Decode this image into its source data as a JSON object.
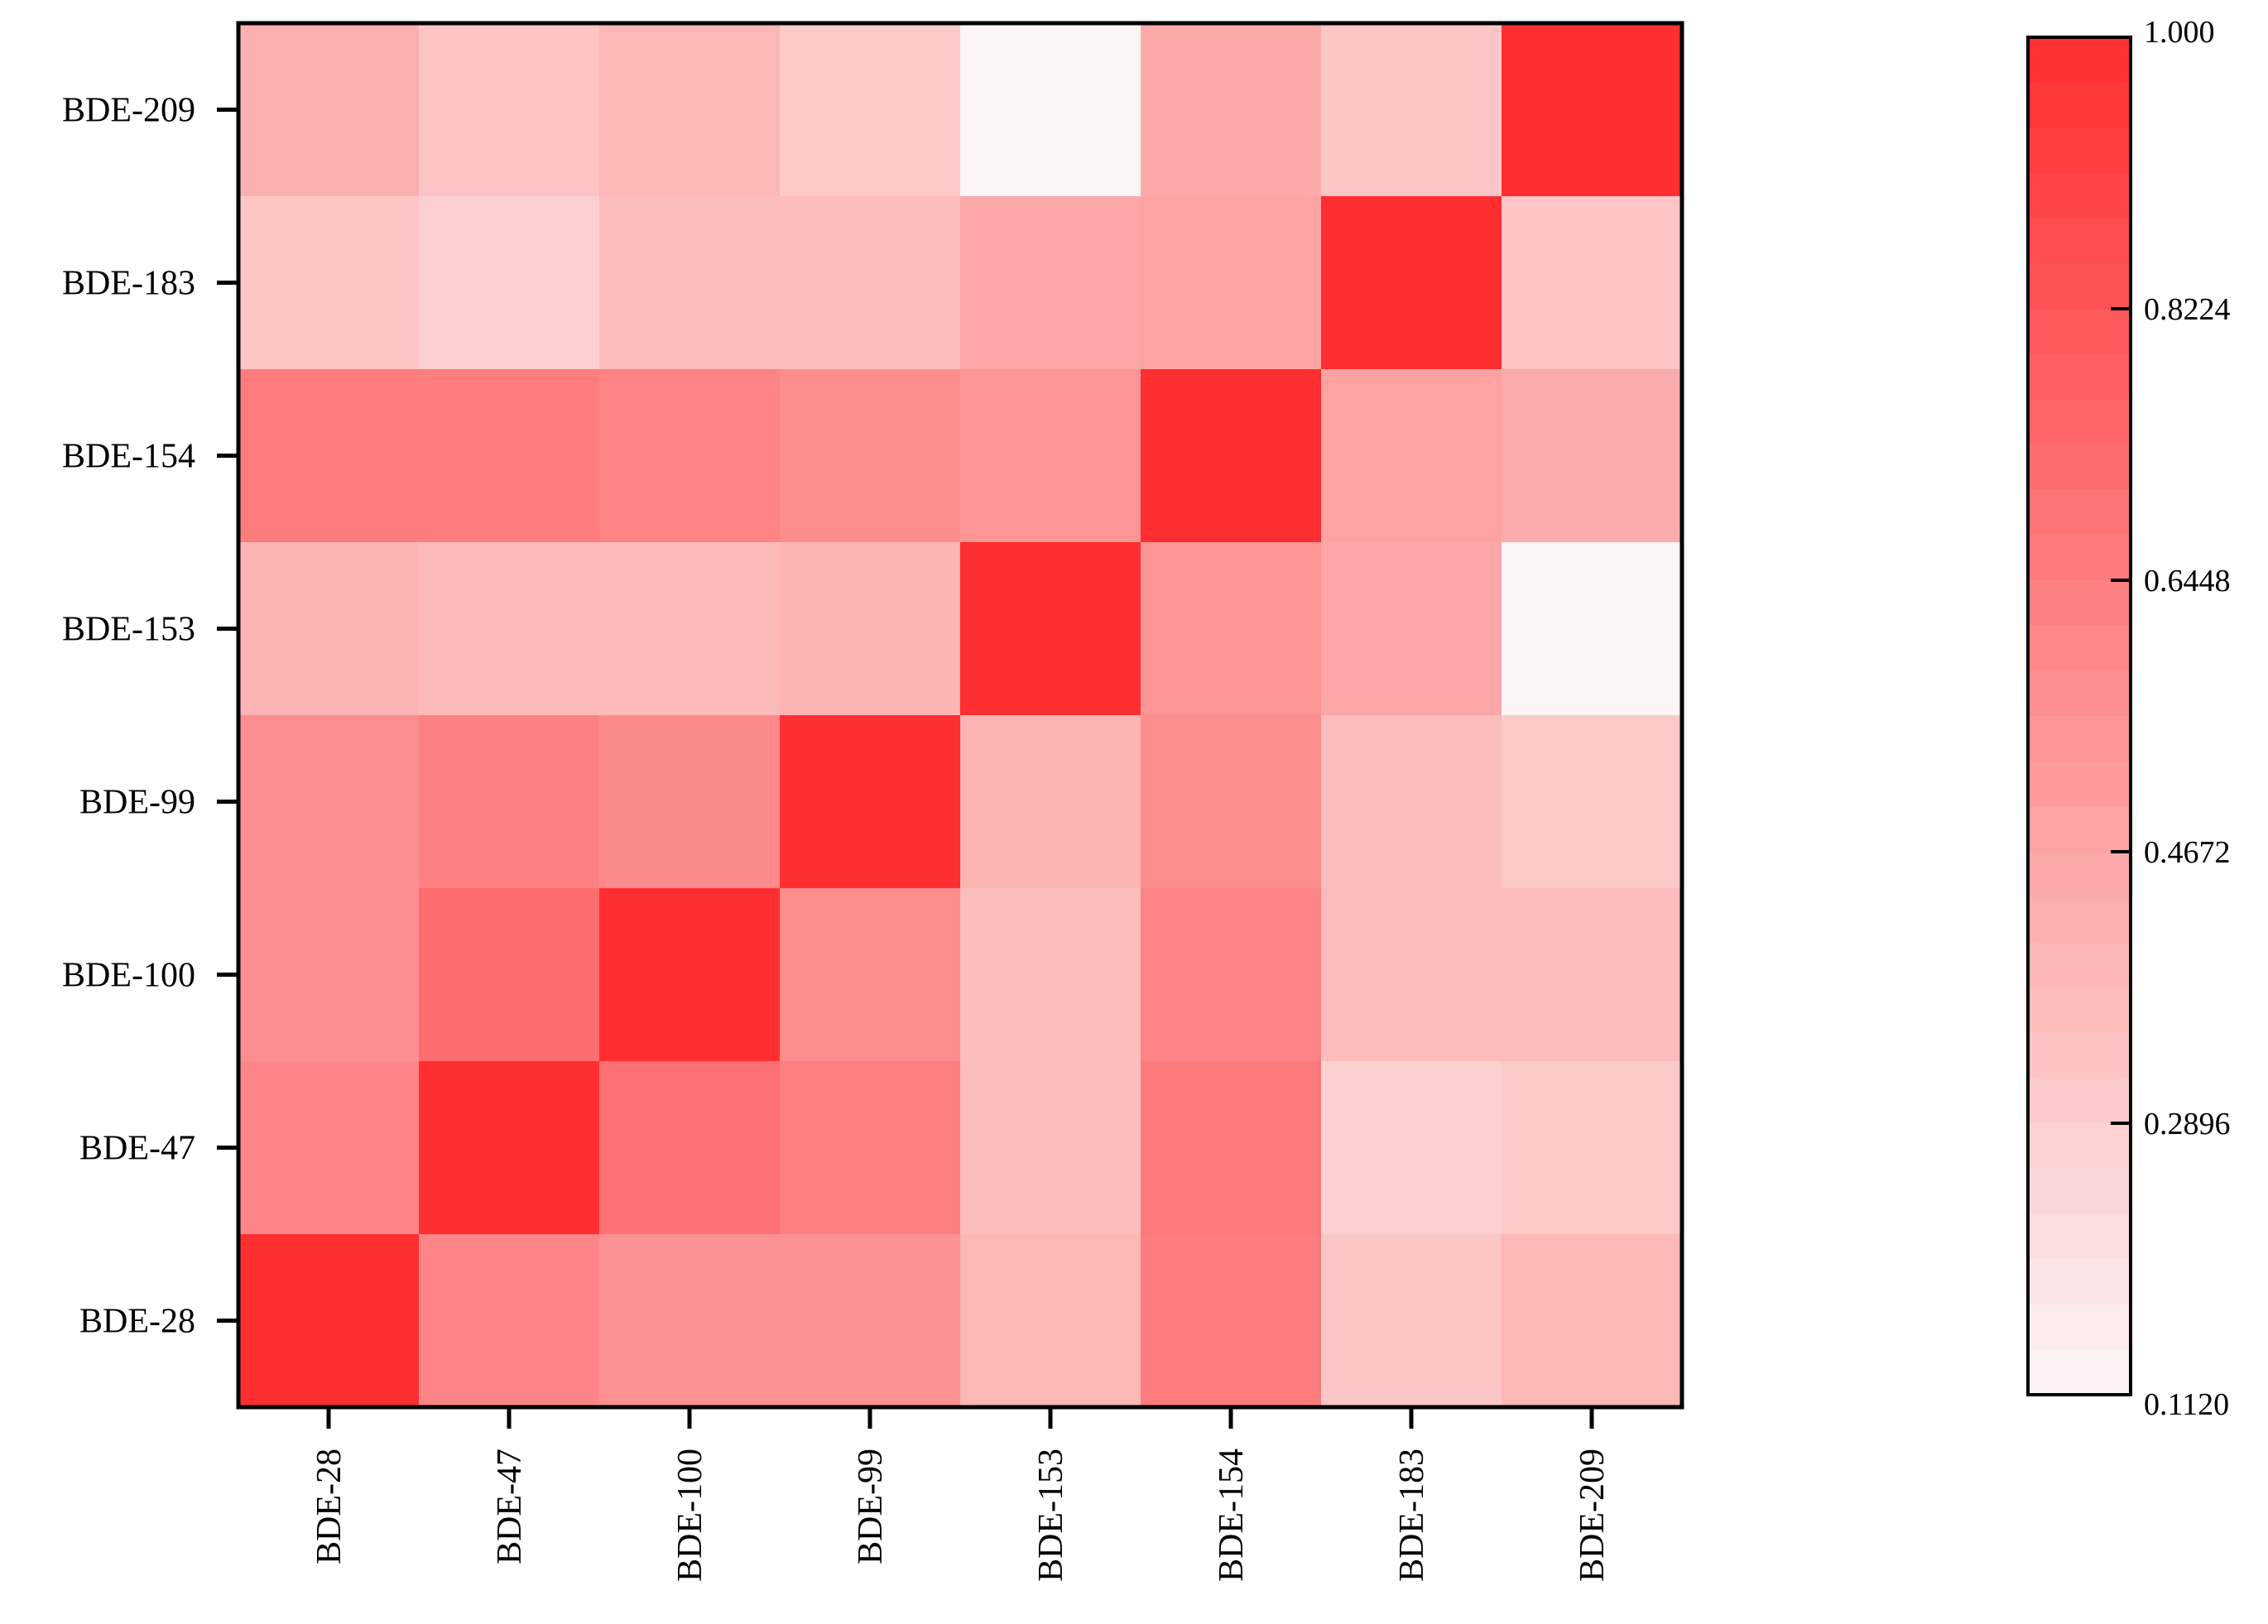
{
  "chart_data": {
    "type": "heatmap",
    "title": "",
    "xlabel": "",
    "ylabel": "",
    "x_categories": [
      "BDE-28",
      "BDE-47",
      "BDE-100",
      "BDE-99",
      "BDE-153",
      "BDE-154",
      "BDE-183",
      "BDE-209"
    ],
    "y_categories": [
      "BDE-209",
      "BDE-183",
      "BDE-154",
      "BDE-153",
      "BDE-99",
      "BDE-100",
      "BDE-47",
      "BDE-28"
    ],
    "values": [
      [
        0.42,
        0.33,
        0.39,
        0.31,
        0.112,
        0.45,
        0.32,
        1.0
      ],
      [
        0.32,
        0.28,
        0.36,
        0.36,
        0.46,
        0.48,
        1.0,
        0.33
      ],
      [
        0.65,
        0.65,
        0.62,
        0.58,
        0.54,
        1.0,
        0.48,
        0.44
      ],
      [
        0.4,
        0.38,
        0.38,
        0.4,
        1.0,
        0.54,
        0.46,
        0.112
      ],
      [
        0.57,
        0.63,
        0.59,
        1.0,
        0.4,
        0.58,
        0.36,
        0.31
      ],
      [
        0.57,
        0.72,
        1.0,
        0.58,
        0.36,
        0.62,
        0.37,
        0.37
      ],
      [
        0.61,
        1.0,
        0.7,
        0.64,
        0.37,
        0.66,
        0.28,
        0.31
      ],
      [
        1.0,
        0.61,
        0.56,
        0.56,
        0.39,
        0.65,
        0.32,
        0.39
      ]
    ],
    "colorbar": {
      "min": 0.112,
      "max": 1.0,
      "ticks": [
        "1.000",
        "0.8224",
        "0.6448",
        "0.4672",
        "0.2896",
        "0.1120"
      ],
      "tick_values": [
        1.0,
        0.8224,
        0.6448,
        0.4672,
        0.2896,
        0.112
      ],
      "steps": 30
    },
    "colors": {
      "low": "#fbf5f5",
      "high": "#ff2e30",
      "axis": "#000000"
    },
    "grid": false,
    "legend": "right"
  }
}
